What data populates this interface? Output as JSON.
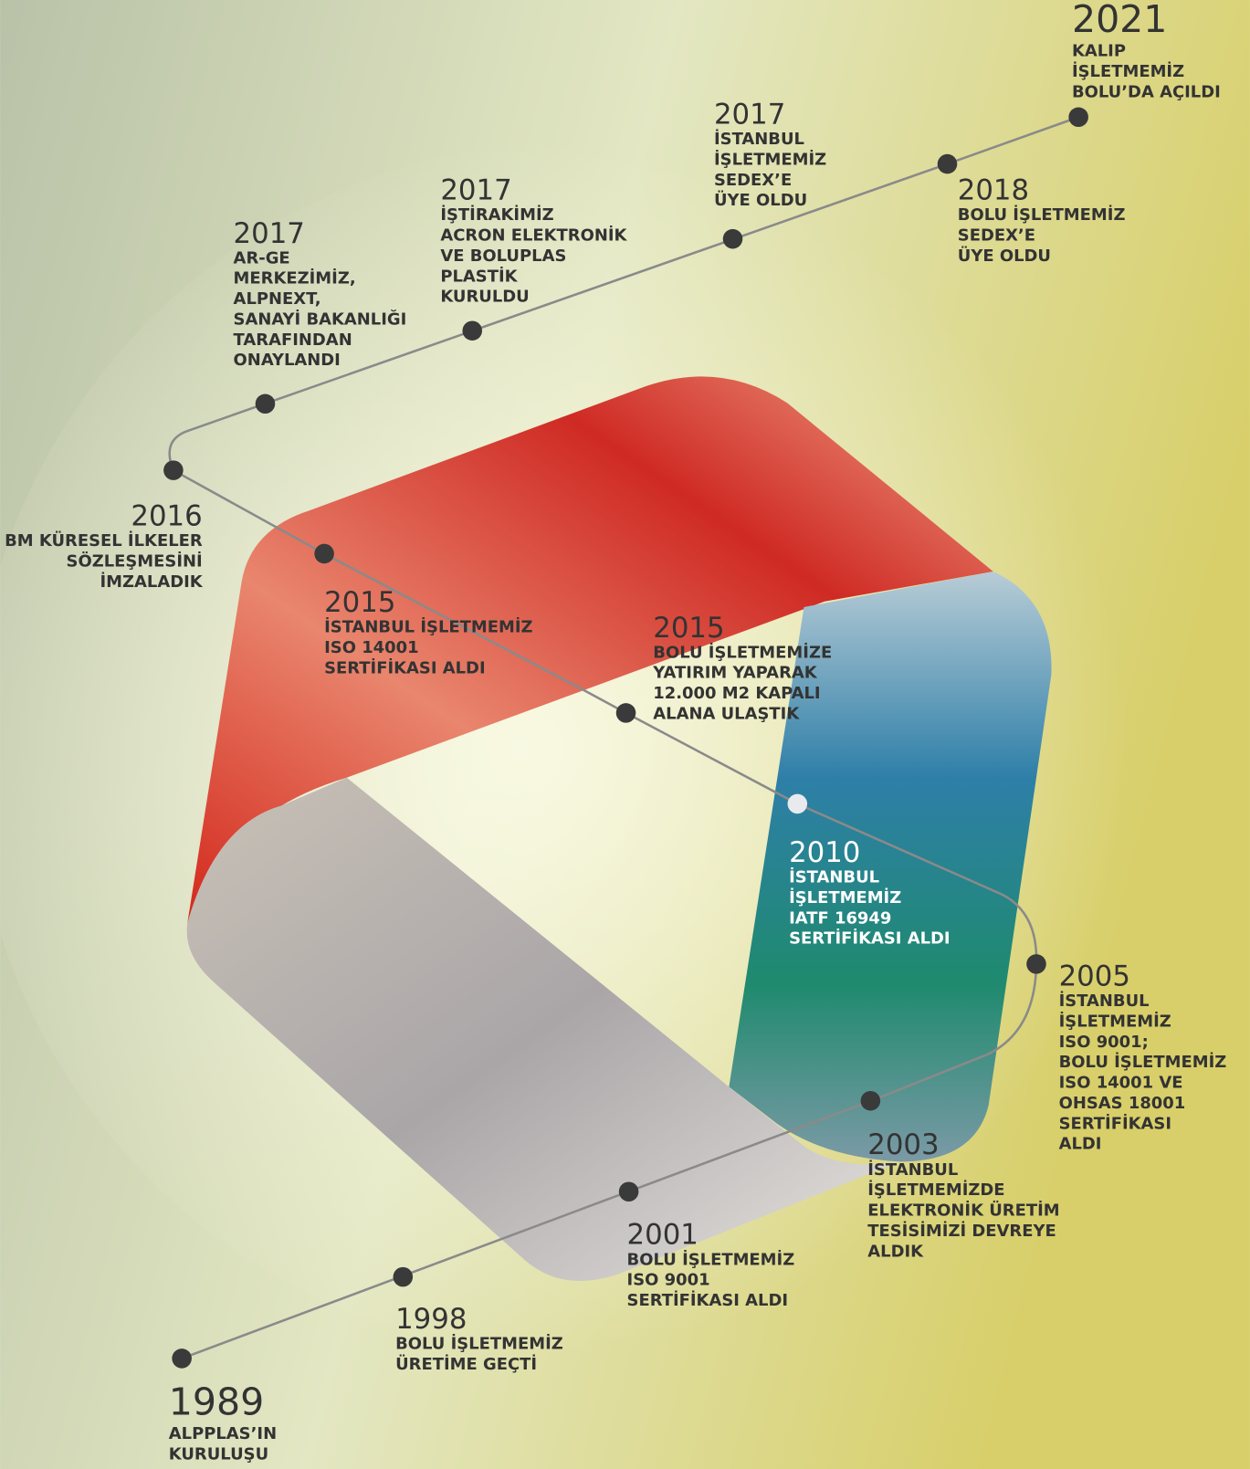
{
  "events": [
    {
      "year": "1989",
      "lines": [
        "ALPPLAS’IN",
        "KURULUŞU"
      ]
    },
    {
      "year": "1998",
      "lines": [
        "BOLU İŞLETMEMİZ",
        "ÜRETİME GEÇTİ"
      ]
    },
    {
      "year": "2001",
      "lines": [
        "BOLU İŞLETMEMİZ",
        "ISO 9001",
        "SERTİFİKASI ALDI"
      ]
    },
    {
      "year": "2003",
      "lines": [
        "İSTANBUL",
        "İŞLETMEMİZDE",
        "ELEKTRONİK ÜRETİM",
        "TESİSİMİZİ DEVREYE",
        "ALDIK"
      ]
    },
    {
      "year": "2005",
      "lines": [
        "İSTANBUL",
        "İŞLETMEMİZ",
        "ISO 9001;",
        "BOLU İŞLETMEMİZ",
        "ISO 14001 VE",
        "OHSAS 18001",
        "SERTİFİKASI",
        "ALDI"
      ]
    },
    {
      "year": "2010",
      "lines": [
        "İSTANBUL",
        "İŞLETMEMİZ",
        "IATF 16949",
        "SERTİFİKASI ALDI"
      ]
    },
    {
      "year": "2015",
      "lines": [
        "BOLU İŞLETMEMİZE",
        "YATIRIM YAPARAK",
        "12.000 M2 KAPALI",
        "ALANA ULAŞTIK"
      ]
    },
    {
      "year": "2015",
      "lines": [
        "İSTANBUL İŞLETMEMİZ",
        "ISO 14001",
        "SERTİFİKASI ALDI"
      ]
    },
    {
      "year": "2016",
      "lines": [
        "BM KÜRESEL İLKELER",
        "SÖZLEŞMESİNİ",
        "İMZALADIK"
      ]
    },
    {
      "year": "2017",
      "lines": [
        "AR-GE",
        "MERKEZİMİZ,",
        "ALPNEXT,",
        "SANAYİ BAKANLIĞI",
        "TARAFINDAN",
        "ONAYLANDI"
      ]
    },
    {
      "year": "2017",
      "lines": [
        "İŞTİRAKİMİZ",
        "ACRON ELEKTRONİK",
        "VE BOLUPLAS",
        "PLASTİK",
        "KURULDU"
      ]
    },
    {
      "year": "2017",
      "lines": [
        "İSTANBUL",
        "İŞLETMEMİZ",
        "SEDEX’E",
        "ÜYE OLDU"
      ]
    },
    {
      "year": "2018",
      "lines": [
        "BOLU İŞLETMEMİZ",
        "SEDEX’E",
        "ÜYE OLDU"
      ]
    },
    {
      "year": "2021",
      "lines": [
        "KALIP",
        "İŞLETMEMİZ",
        "BOLU’DA AÇILDI"
      ]
    }
  ]
}
